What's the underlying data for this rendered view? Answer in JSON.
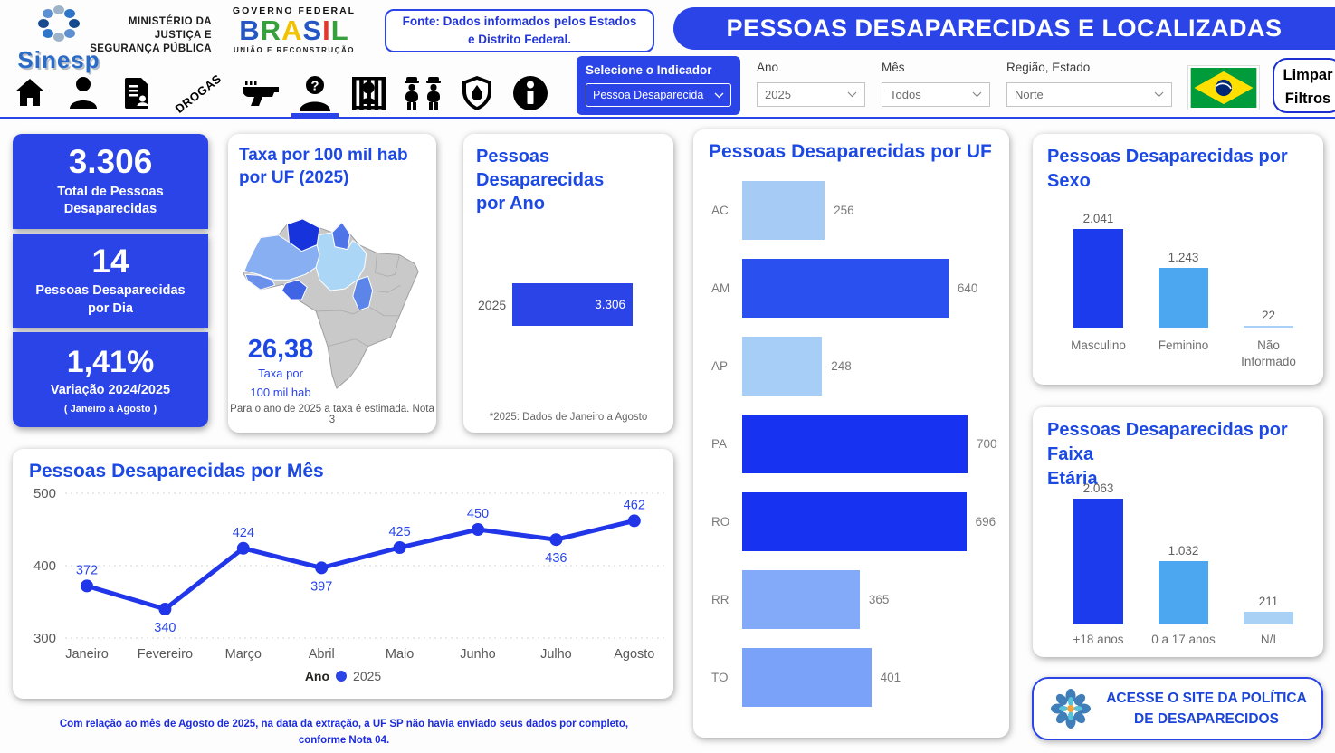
{
  "colors": {
    "primary_blue": "#2B44E7",
    "title_blue": "#1C49E4",
    "bar_darkest": "#1832F2",
    "bar_strong": "#2B50F0",
    "bar_medium": "#7AA2F8",
    "bar_light": "#A6CCF5",
    "column_dark": "#1B3BEC",
    "column_sky": "#4DA6F0",
    "column_pale": "#A9D0F5",
    "line_blue": "#2036E8"
  },
  "header": {
    "sinesp": "Sinesp",
    "ministry_line1": "MINISTÉRIO DA",
    "ministry_line2": "JUSTIÇA E",
    "ministry_line3": "SEGURANÇA PÚBLICA",
    "gov_top": "GOVERNO FEDERAL",
    "gov_brasil": "BRASIL",
    "gov_bottom": "UNIÃO E RECONSTRUÇÃO",
    "fonte_line1": "Fonte: Dados informados pelos Estados",
    "fonte_line2": "e Distrito Federal.",
    "banner_title": "PESSOAS DESAPARECIDAS E LOCALIZADAS"
  },
  "nav": {
    "items": [
      {
        "name": "home-icon"
      },
      {
        "name": "person-icon"
      },
      {
        "name": "report-icon"
      },
      {
        "name": "drogas-icon",
        "label": "DROGAS"
      },
      {
        "name": "gun-icon"
      },
      {
        "name": "missing-person-icon",
        "active": true
      },
      {
        "name": "jail-icon"
      },
      {
        "name": "police-icon"
      },
      {
        "name": "shield-icon"
      },
      {
        "name": "info-icon"
      }
    ]
  },
  "filters": {
    "indicator_label": "Selecione o Indicador",
    "indicator_value": "Pessoa Desaparecida",
    "ano_label": "Ano",
    "ano_value": "2025",
    "mes_label": "Mês",
    "mes_value": "Todos",
    "regiao_label": "Região, Estado",
    "regiao_value": "Norte",
    "flag_icon": "brazil-flag-icon",
    "clear_line1": "Limpar",
    "clear_line2": "Filtros"
  },
  "kpi": {
    "k1_value": "3.306",
    "k1_label_line1": "Total de Pessoas",
    "k1_label_line2": "Desaparecidas",
    "k2_value": "14",
    "k2_label_line1": "Pessoas Desaparecidas",
    "k2_label_line2": "por Dia",
    "k3_value": "1,41%",
    "k3_label": "Variação 2024/2025",
    "k3_sublabel": "( Janeiro a Agosto )"
  },
  "cards": {
    "map": {
      "title_line1": "Taxa por 100 mil hab",
      "title_line2": "por UF (2025)",
      "rate_value": "26,38",
      "rate_label_line1": "Taxa por",
      "rate_label_line2": "100 mil hab",
      "footnote": "Para o ano de 2025 a taxa é estimada. Nota 3",
      "state_fill": {
        "RR": "#1733DB",
        "AP": "#4E74E8",
        "AM": "#88AFF2",
        "PA": "#ACD6F5",
        "TO": "#5C85EA",
        "RO": "#3F64E6",
        "AC": "#6B90EC"
      }
    },
    "ano": {
      "title_line1": "Pessoas Desaparecidas",
      "title_line2": "por Ano",
      "category": "2025",
      "value_label": "3.306",
      "footnote": "*2025: Dados de Janeiro a Agosto"
    },
    "uf": {
      "title": "Pessoas Desaparecidas por UF"
    },
    "sexo": {
      "title_line1": "Pessoas Desaparecidas por",
      "title_line2": "Sexo"
    },
    "faixa": {
      "title_line1": "Pessoas Desaparecidas por Faixa",
      "title_line2": "Etária"
    },
    "mes": {
      "title": "Pessoas Desaparecidas por Mês",
      "legend_label": "Ano",
      "legend_entry": "2025"
    }
  },
  "footer": {
    "note": "Com relação ao mês de Agosto de 2025, na data da extração, a UF SP não havia enviado seus dados por completo, conforme Nota 04."
  },
  "site_button": {
    "icon": "flower-logo-icon",
    "line1": "ACESSE O SITE DA POLÍTICA",
    "line2": "DE DESAPARECIDOS"
  },
  "chart_data": [
    {
      "type": "bar",
      "orientation": "horizontal",
      "title": "Pessoas Desaparecidas por Ano",
      "categories": [
        "2025"
      ],
      "values": [
        3306
      ],
      "value_labels": [
        "3.306"
      ],
      "note": "*2025: Dados de Janeiro a Agosto",
      "bar_color": "#2B44E7"
    },
    {
      "type": "bar",
      "orientation": "horizontal",
      "title": "Pessoas Desaparecidas por UF",
      "categories": [
        "AC",
        "AM",
        "AP",
        "PA",
        "RO",
        "RR",
        "TO"
      ],
      "values": [
        256,
        640,
        248,
        700,
        696,
        365,
        401
      ],
      "xlim": [
        0,
        700
      ],
      "colors": [
        "#A6CCF5",
        "#2B50F0",
        "#A6CEF7",
        "#1832F2",
        "#1832F2",
        "#82AAF8",
        "#7AA2F8"
      ]
    },
    {
      "type": "bar",
      "title": "Pessoas Desaparecidas por Sexo",
      "categories": [
        "Masculino",
        "Feminino",
        "Não Informado"
      ],
      "values": [
        2041,
        1243,
        22
      ],
      "value_labels": [
        "2.041",
        "1.243",
        "22"
      ],
      "colors": [
        "#1B3BEC",
        "#4DA6F0",
        "#A9D0F5"
      ]
    },
    {
      "type": "bar",
      "title": "Pessoas Desaparecidas por Faixa Etária",
      "categories": [
        "+18 anos",
        "0 a 17 anos",
        "N/I"
      ],
      "values": [
        2063,
        1032,
        211
      ],
      "value_labels": [
        "2.063",
        "1.032",
        "211"
      ],
      "colors": [
        "#1B3BEC",
        "#4DA6F0",
        "#A9D0F5"
      ]
    },
    {
      "type": "line",
      "title": "Pessoas Desaparecidas por Mês",
      "x": [
        "Janeiro",
        "Fevereiro",
        "Março",
        "Abril",
        "Maio",
        "Junho",
        "Julho",
        "Agosto"
      ],
      "series": [
        {
          "name": "2025",
          "values": [
            372,
            340,
            424,
            397,
            425,
            450,
            436,
            462
          ]
        }
      ],
      "ylim": [
        300,
        500
      ],
      "yticks": [
        500,
        400,
        300
      ],
      "grid": "dotted",
      "legend_position": "bottom",
      "line_color": "#2036E8",
      "label_below_indices": [
        1,
        3,
        6
      ]
    },
    {
      "type": "choropleth",
      "title": "Taxa por 100 mil hab por UF (2025)",
      "value": "26,38",
      "value_label": "Taxa por 100 mil hab",
      "highlighted_states": [
        "AC",
        "AM",
        "AP",
        "PA",
        "RO",
        "RR",
        "TO"
      ],
      "note": "Para o ano de 2025 a taxa é estimada. Nota 3"
    }
  ]
}
